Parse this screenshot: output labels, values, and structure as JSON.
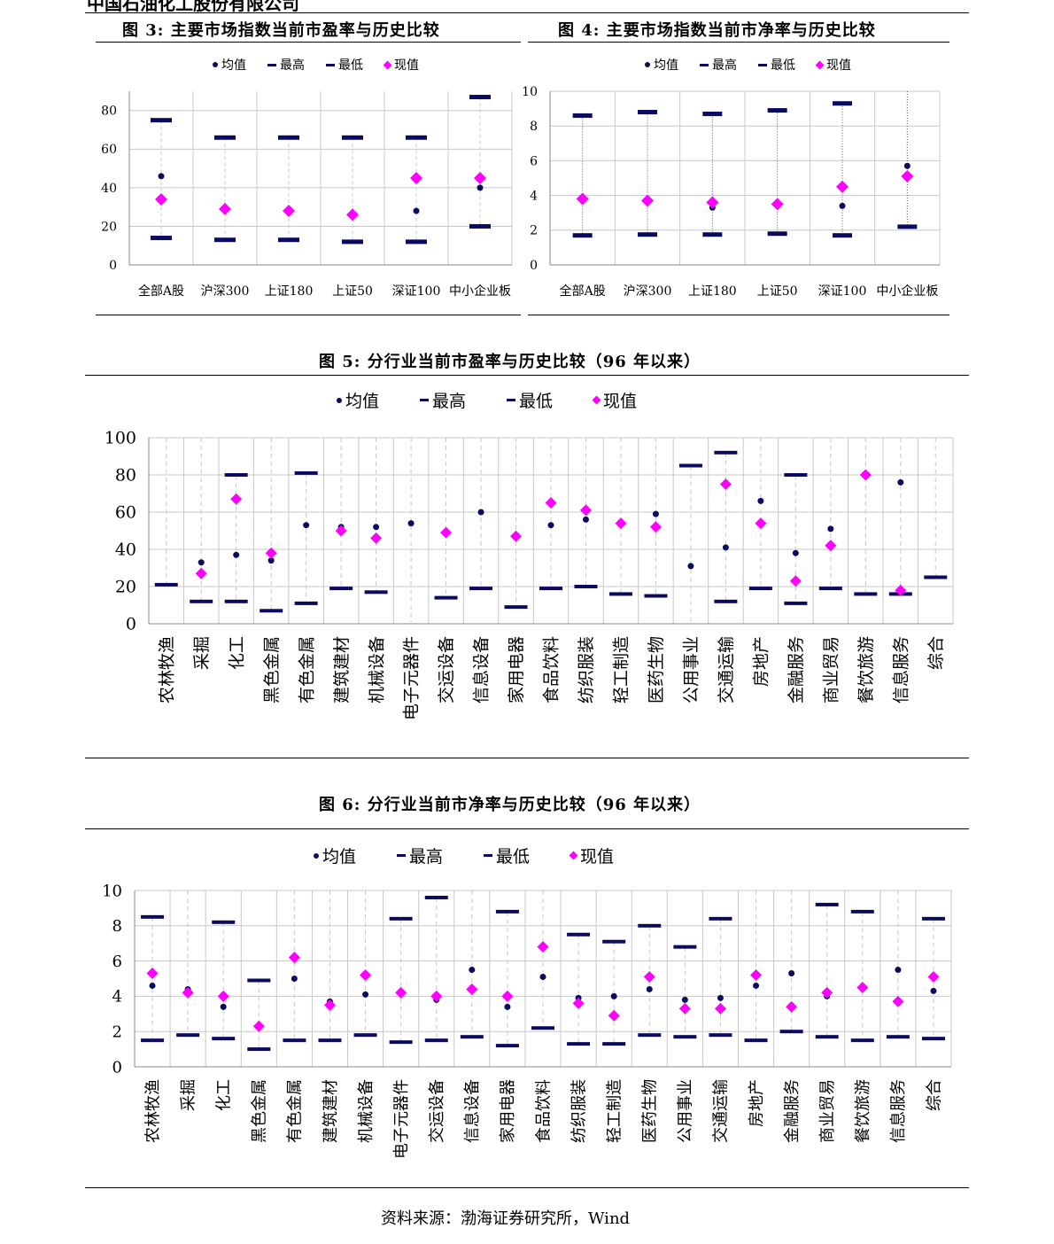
{
  "header": {
    "clipped_text": "中国石油化工股份有限公司"
  },
  "source": "资料来源：渤海证券研究所，Wind",
  "legend": {
    "mean": "均值",
    "max": "最高",
    "min": "最低",
    "current": "现值"
  },
  "colors": {
    "dark": "#0a0a60",
    "current": "#ff00ff",
    "grid": "#c8c8c8"
  },
  "charts": [
    {
      "id": "fig3",
      "title": "图 3: 主要市场指数当前市盈率与历史比较",
      "chart_data": {
        "type": "scatter",
        "categories": [
          "全部A股",
          "沪深300",
          "上证180",
          "上证50",
          "深证100",
          "中小企业板"
        ],
        "yticks": [
          "0",
          "20",
          "40",
          "60",
          "80"
        ],
        "ylim": [
          0,
          90
        ],
        "grid": true,
        "legend_position": "top",
        "series": [
          {
            "name": "均值",
            "values": [
              46,
              null,
              null,
              null,
              28,
              40
            ]
          },
          {
            "name": "最高",
            "values": [
              75,
              66,
              66,
              66,
              66,
              87
            ]
          },
          {
            "name": "最低",
            "values": [
              14,
              13,
              13,
              12,
              12,
              20
            ]
          },
          {
            "name": "现值",
            "values": [
              34,
              29,
              28,
              26,
              45,
              45
            ]
          }
        ]
      }
    },
    {
      "id": "fig4",
      "title": "图 4: 主要市场指数当前市净率与历史比较",
      "chart_data": {
        "type": "scatter",
        "categories": [
          "全部A股",
          "沪深300",
          "上证180",
          "上证50",
          "深证100",
          "中小企业板"
        ],
        "yticks": [
          "0",
          "2",
          "4",
          "6",
          "8",
          "10"
        ],
        "ylim": [
          0,
          10
        ],
        "grid": true,
        "legend_position": "top",
        "series": [
          {
            "name": "均值",
            "values": [
              null,
              null,
              3.3,
              null,
              3.4,
              5.7
            ]
          },
          {
            "name": "最高",
            "values": [
              8.6,
              8.8,
              8.7,
              8.9,
              9.3,
              null
            ]
          },
          {
            "name": "最低",
            "values": [
              1.7,
              1.75,
              1.75,
              1.8,
              1.7,
              2.2
            ]
          },
          {
            "name": "现值",
            "values": [
              3.8,
              3.7,
              3.6,
              3.5,
              4.5,
              5.1
            ]
          }
        ]
      }
    },
    {
      "id": "fig5",
      "title": "图 5: 分行业当前市盈率与历史比较（96 年以来）",
      "chart_data": {
        "type": "scatter",
        "categories": [
          "农林牧渔",
          "采掘",
          "化工",
          "黑色金属",
          "有色金属",
          "建筑建材",
          "机械设备",
          "电子元器件",
          "交运设备",
          "信息设备",
          "家用电器",
          "食品饮料",
          "纺织服装",
          "轻工制造",
          "医药生物",
          "公用事业",
          "交通运输",
          "房地产",
          "金融服务",
          "商业贸易",
          "餐饮旅游",
          "信息服务",
          "综合"
        ],
        "yticks": [
          "0",
          "20",
          "40",
          "60",
          "80",
          "100"
        ],
        "ylim": [
          0,
          100
        ],
        "grid": true,
        "legend_position": "top",
        "series": [
          {
            "name": "均值",
            "values": [
              null,
              33,
              37,
              34,
              53,
              52,
              52,
              54,
              null,
              60,
              null,
              53,
              56,
              null,
              59,
              31,
              41,
              66,
              38,
              51,
              null,
              76,
              null
            ]
          },
          {
            "name": "最高",
            "values": [
              null,
              null,
              80,
              null,
              81,
              null,
              null,
              null,
              null,
              null,
              null,
              null,
              null,
              null,
              null,
              85,
              92,
              null,
              80,
              null,
              null,
              null,
              null
            ]
          },
          {
            "name": "最低",
            "values": [
              21,
              12,
              12,
              7,
              11,
              19,
              17,
              null,
              14,
              19,
              9,
              19,
              20,
              16,
              15,
              null,
              12,
              19,
              11,
              19,
              16,
              16,
              25
            ]
          },
          {
            "name": "现值",
            "values": [
              null,
              27,
              67,
              38,
              null,
              50,
              46,
              null,
              49,
              null,
              47,
              65,
              61,
              54,
              52,
              null,
              75,
              54,
              23,
              42,
              80,
              18,
              null
            ]
          }
        ]
      }
    },
    {
      "id": "fig6",
      "title": "图 6: 分行业当前市净率与历史比较（96 年以来）",
      "chart_data": {
        "type": "scatter",
        "categories": [
          "农林牧渔",
          "采掘",
          "化工",
          "黑色金属",
          "有色金属",
          "建筑建材",
          "机械设备",
          "电子元器件",
          "交运设备",
          "信息设备",
          "家用电器",
          "食品饮料",
          "纺织服装",
          "轻工制造",
          "医药生物",
          "公用事业",
          "交通运输",
          "房地产",
          "金融服务",
          "商业贸易",
          "餐饮旅游",
          "信息服务",
          "综合"
        ],
        "yticks": [
          "0",
          "2",
          "4",
          "6",
          "8",
          "10"
        ],
        "ylim": [
          0,
          10
        ],
        "grid": true,
        "legend_position": "top",
        "series": [
          {
            "name": "均值",
            "values": [
              4.6,
              4.4,
              3.4,
              null,
              5.0,
              3.7,
              4.1,
              null,
              3.8,
              5.5,
              3.4,
              5.1,
              3.9,
              4.0,
              4.4,
              3.8,
              3.9,
              4.6,
              5.3,
              4.0,
              null,
              5.5,
              4.3
            ]
          },
          {
            "name": "最高",
            "values": [
              8.5,
              null,
              8.2,
              4.9,
              null,
              null,
              null,
              8.4,
              9.6,
              null,
              8.8,
              null,
              7.5,
              7.1,
              8.0,
              6.8,
              8.4,
              null,
              null,
              9.2,
              8.8,
              null,
              8.4
            ]
          },
          {
            "name": "最低",
            "values": [
              1.5,
              1.8,
              1.6,
              1.0,
              1.5,
              1.5,
              1.8,
              1.4,
              1.5,
              1.7,
              1.2,
              2.2,
              1.3,
              1.3,
              1.8,
              1.7,
              1.8,
              1.5,
              2.0,
              1.7,
              1.5,
              1.7,
              1.6
            ]
          },
          {
            "name": "现值",
            "values": [
              5.3,
              4.2,
              4.0,
              2.3,
              6.2,
              3.5,
              5.2,
              4.2,
              4.0,
              4.4,
              4.0,
              6.8,
              3.6,
              2.9,
              5.1,
              3.3,
              3.3,
              5.2,
              3.4,
              4.2,
              4.5,
              3.7,
              5.1
            ]
          }
        ]
      }
    }
  ]
}
